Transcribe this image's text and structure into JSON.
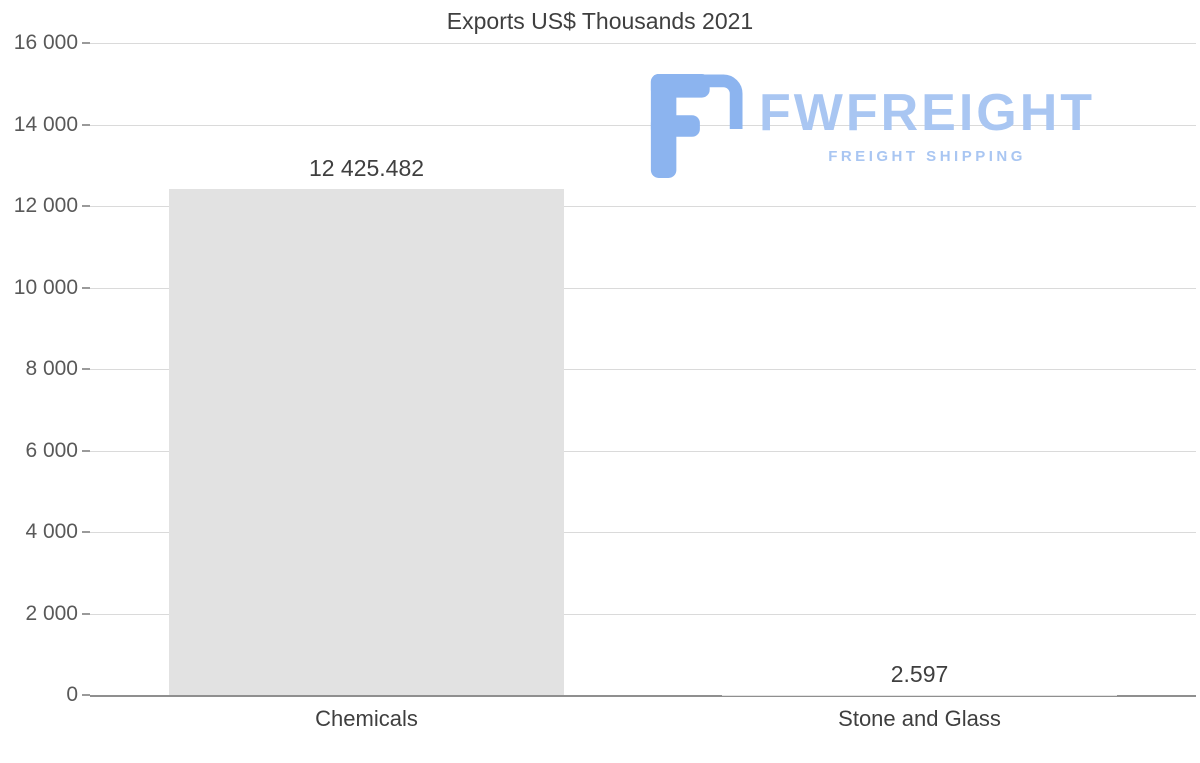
{
  "title": "Exports US$ Thousands 2021",
  "logo": {
    "brand": "FWFREIGHT",
    "tagline": "FREIGHT SHIPPING"
  },
  "colors": {
    "bar": "#e2e2e2",
    "grid": "#dadada",
    "axis-line": "#8f8f8f",
    "tick": "#9a9a9a",
    "title-text": "#3f3f3f",
    "axis-text": "#595959",
    "label-text": "#3f3f3f",
    "logo-fill": "#8cb4ef",
    "logo-text": "#a9c6f2"
  },
  "chart_data": {
    "type": "bar",
    "title": "Exports US$ Thousands 2021",
    "categories": [
      "Chemicals",
      "Stone and Glass"
    ],
    "values": [
      12425.482,
      2.597
    ],
    "value_labels": [
      "12 425.482",
      "2.597"
    ],
    "xlabel": "",
    "ylabel": "",
    "ylim": [
      0,
      16000
    ],
    "ytick_step": 2000,
    "yticks": [
      "16 000",
      "14 000",
      "12 000",
      "10 000",
      "8 000",
      "6 000",
      "4 000",
      "2 000",
      "0"
    ],
    "grid": true,
    "legend": false,
    "bar_color": "#e2e2e2"
  }
}
